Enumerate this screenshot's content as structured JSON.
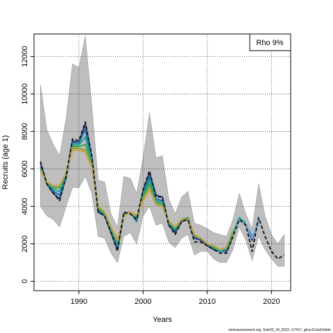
{
  "chart_data": {
    "type": "line",
    "xlabel": "Years",
    "ylabel": "Recruits (age 1)",
    "xlim": [
      1983,
      2023
    ],
    "ylim": [
      -500,
      13200
    ],
    "x_ticks": [
      1990,
      2000,
      2010,
      2020
    ],
    "y_ticks": [
      0,
      2000,
      4000,
      6000,
      8000,
      10000,
      12000
    ],
    "grid": "dotted",
    "legend": {
      "placement": "top-right",
      "label": "Rho 9%"
    },
    "band": {
      "x": [
        1984,
        1985,
        1986,
        1987,
        1988,
        1989,
        1990,
        1991,
        1992,
        1993,
        1994,
        1995,
        1996,
        1997,
        1998,
        1999,
        2000,
        2001,
        2002,
        2003,
        2004,
        2005,
        2006,
        2007,
        2008,
        2009,
        2010,
        2011,
        2012,
        2013,
        2014,
        2015,
        2016,
        2017,
        2018,
        2019,
        2020,
        2021,
        2022
      ],
      "upper": [
        10500,
        8100,
        7300,
        6700,
        8700,
        11600,
        11400,
        13100,
        9400,
        5400,
        5300,
        3600,
        2900,
        5600,
        5500,
        4700,
        6600,
        9000,
        6600,
        6700,
        4400,
        3600,
        4500,
        4800,
        3100,
        3000,
        2800,
        2600,
        2500,
        2400,
        3300,
        4700,
        3600,
        2800,
        5200,
        3500,
        2500,
        2000,
        2500
      ],
      "lower": [
        4000,
        3500,
        3300,
        2900,
        4000,
        5000,
        5000,
        5600,
        4700,
        2400,
        2300,
        1500,
        1000,
        2400,
        2600,
        2000,
        3500,
        4000,
        3000,
        3100,
        2100,
        1800,
        2300,
        2500,
        1400,
        1600,
        1600,
        1200,
        1000,
        1000,
        1700,
        2900,
        2200,
        1100,
        2400,
        1700,
        1200,
        800,
        800
      ]
    },
    "series": [
      {
        "color": "#1a1a1a",
        "dash": true,
        "x": [
          1984,
          1985,
          1986,
          1987,
          1988,
          1989,
          1990,
          1991,
          1992,
          1993,
          1994,
          1995,
          1996,
          1997,
          1998,
          1999,
          2000,
          2001,
          2002,
          2003,
          2004,
          2005,
          2006,
          2007,
          2008,
          2009,
          2010,
          2011,
          2012,
          2013,
          2014,
          2015,
          2016,
          2017,
          2018,
          2019,
          2020,
          2021,
          2022
        ],
        "values": [
          6400,
          5200,
          4700,
          4300,
          5600,
          7600,
          7500,
          8500,
          6700,
          3700,
          3500,
          2600,
          1600,
          3700,
          3600,
          3300,
          4900,
          5900,
          4500,
          4500,
          3000,
          2500,
          3200,
          3300,
          2100,
          2100,
          1900,
          1700,
          1500,
          1500,
          2400,
          3300,
          3000,
          1600,
          3400,
          2400,
          1600,
          1200,
          1400
        ]
      },
      {
        "color": "#2c3d8f",
        "x": [
          1984,
          1985,
          1986,
          1987,
          1988,
          1989,
          1990,
          1991,
          1992,
          1993,
          1994,
          1995,
          1996,
          1997,
          1998,
          1999,
          2000,
          2001,
          2002,
          2003,
          2004,
          2005,
          2006,
          2007,
          2008,
          2009,
          2010,
          2011,
          2012,
          2013,
          2014,
          2015,
          2016,
          2017,
          2018
        ],
        "values": [
          6300,
          5200,
          4700,
          4400,
          5600,
          7500,
          7400,
          8400,
          6600,
          3700,
          3500,
          2600,
          1700,
          3600,
          3700,
          3200,
          4800,
          5800,
          4600,
          4500,
          3000,
          2600,
          3200,
          3300,
          2300,
          2200,
          1900,
          1700,
          1600,
          1600,
          2400,
          3300,
          3000,
          2200,
          3300
        ]
      },
      {
        "color": "#1f6fa6",
        "x": [
          1984,
          1985,
          1986,
          1987,
          1988,
          1989,
          1990,
          1991,
          1992,
          1993,
          1994,
          1995,
          1996,
          1997,
          1998,
          1999,
          2000,
          2001,
          2002,
          2003,
          2004,
          2005,
          2006,
          2007,
          2008,
          2009,
          2010,
          2011,
          2012,
          2013,
          2014,
          2015,
          2016,
          2017
        ],
        "values": [
          6100,
          5200,
          4800,
          4600,
          5500,
          7400,
          7400,
          8100,
          6500,
          3800,
          3500,
          2700,
          1800,
          3500,
          3700,
          3200,
          4700,
          5600,
          4400,
          4300,
          3100,
          2700,
          3300,
          3300,
          2400,
          2300,
          2000,
          1800,
          1600,
          1700,
          2500,
          3400,
          3000,
          2400
        ]
      },
      {
        "color": "#20a29a",
        "x": [
          1984,
          1985,
          1986,
          1987,
          1988,
          1989,
          1990,
          1991,
          1992,
          1993,
          1994,
          1995,
          1996,
          1997,
          1998,
          1999,
          2000,
          2001,
          2002,
          2003,
          2004,
          2005,
          2006,
          2007,
          2008,
          2009,
          2010,
          2011,
          2012,
          2013,
          2014,
          2015,
          2016
        ],
        "values": [
          6000,
          5300,
          4900,
          4800,
          5600,
          7300,
          7300,
          7700,
          6400,
          3900,
          3600,
          2800,
          2000,
          3500,
          3700,
          3300,
          4600,
          5400,
          4300,
          4200,
          3100,
          2800,
          3300,
          3400,
          2400,
          2300,
          2000,
          1800,
          1600,
          1700,
          2500,
          3400,
          3100
        ]
      },
      {
        "color": "#3aa84a",
        "x": [
          1984,
          1985,
          1986,
          1987,
          1988,
          1989,
          1990,
          1991,
          1992,
          1993,
          1994,
          1995,
          1996,
          1997,
          1998,
          1999,
          2000,
          2001,
          2002,
          2003,
          2004,
          2005,
          2006,
          2007,
          2008,
          2009,
          2010,
          2011,
          2012,
          2013,
          2014,
          2015
        ],
        "values": [
          6000,
          5300,
          5000,
          5000,
          5700,
          7200,
          7200,
          7300,
          6300,
          3900,
          3600,
          2800,
          2100,
          3500,
          3700,
          3400,
          4500,
          5200,
          4200,
          4100,
          3200,
          2800,
          3300,
          3400,
          2400,
          2300,
          2000,
          1800,
          1700,
          1800,
          2600,
          3300
        ]
      },
      {
        "color": "#9aa03a",
        "x": [
          1984,
          1985,
          1986,
          1987,
          1988,
          1989,
          1990,
          1991,
          1992,
          1993,
          1994,
          1995,
          1996,
          1997,
          1998,
          1999,
          2000,
          2001,
          2002,
          2003,
          2004,
          2005,
          2006,
          2007,
          2008,
          2009,
          2010,
          2011,
          2012,
          2013,
          2014
        ],
        "values": [
          5900,
          5300,
          5100,
          5100,
          5800,
          7100,
          7100,
          7000,
          6200,
          4000,
          3700,
          2900,
          2200,
          3500,
          3700,
          3500,
          4400,
          5000,
          4100,
          4000,
          3200,
          2900,
          3300,
          3300,
          2500,
          2300,
          2000,
          1900,
          1700,
          1800,
          2700
        ]
      },
      {
        "color": "#c8a24a",
        "x": [
          1984,
          1985,
          1986,
          1987,
          1988,
          1989,
          1990,
          1991,
          1992,
          1993,
          1994,
          1995,
          1996,
          1997,
          1998,
          1999,
          2000,
          2001,
          2002,
          2003,
          2004,
          2005,
          2006,
          2007,
          2008,
          2009,
          2010,
          2011,
          2012,
          2013
        ],
        "values": [
          5900,
          5300,
          5100,
          5100,
          5800,
          7000,
          7000,
          6900,
          6100,
          4000,
          3700,
          2900,
          2200,
          3500,
          3700,
          3500,
          4300,
          4900,
          4100,
          4000,
          3200,
          2900,
          3300,
          3300,
          2500,
          2300,
          2000,
          1900,
          1700,
          1800
        ]
      },
      {
        "color": "#6db0e0",
        "x": [
          2014,
          2015,
          2016,
          2017,
          2018
        ],
        "values": [
          2400,
          3300,
          3000,
          2300,
          3300
        ]
      }
    ]
  },
  "footer": "stockassessment.org, Sole20_24_2023, r17417, git:ec2c2a0c6dde"
}
